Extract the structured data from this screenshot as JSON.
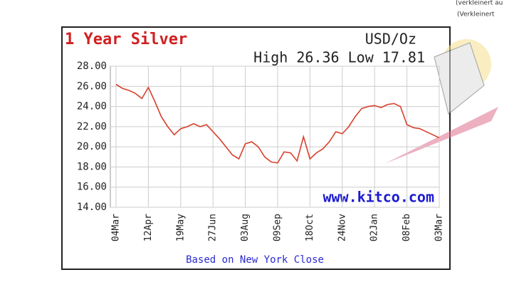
{
  "chart_data": {
    "type": "line",
    "title": "1 Year Silver",
    "subtitle": "USD/Oz",
    "annotation": "High 26.36 Low 17.81",
    "watermark": "www.kitco.com",
    "footer": "Based on New York Close",
    "categories": [
      "04Mar",
      null,
      null,
      null,
      null,
      "12Apr",
      null,
      null,
      null,
      null,
      "19May",
      null,
      null,
      null,
      null,
      "27Jun",
      null,
      null,
      null,
      null,
      "03Aug",
      null,
      null,
      null,
      null,
      "09Sep",
      null,
      null,
      null,
      null,
      "18Oct",
      null,
      null,
      null,
      null,
      "24Nov",
      null,
      null,
      null,
      null,
      "02Jan",
      null,
      null,
      null,
      null,
      "08Feb",
      null,
      null,
      null,
      null,
      "03Mar"
    ],
    "values": [
      26.2,
      25.8,
      25.6,
      25.3,
      24.8,
      25.9,
      24.5,
      23.0,
      22.0,
      21.2,
      21.8,
      22.0,
      22.3,
      22.0,
      22.2,
      21.5,
      20.8,
      20.0,
      19.2,
      18.8,
      20.3,
      20.5,
      20.0,
      19.0,
      18.5,
      18.4,
      19.5,
      19.4,
      18.6,
      21.0,
      18.8,
      19.4,
      19.8,
      20.5,
      21.5,
      21.3,
      22.0,
      23.0,
      23.8,
      24.0,
      24.1,
      23.9,
      24.2,
      24.3,
      24.0,
      22.2,
      21.9,
      21.8,
      21.5,
      21.2,
      20.9
    ],
    "color": "#d8402c",
    "ylim": [
      14,
      28
    ],
    "yticks": [
      {
        "value": 14,
        "label": "14.00"
      },
      {
        "value": 16,
        "label": "16.00"
      },
      {
        "value": 18,
        "label": "18.00"
      },
      {
        "value": 20,
        "label": "20.00"
      },
      {
        "value": 22,
        "label": "22.00"
      },
      {
        "value": 24,
        "label": "24.00"
      },
      {
        "value": 26,
        "label": "26.00"
      },
      {
        "value": 28,
        "label": "28.00"
      }
    ],
    "grid": true
  },
  "captions": [
    "(verkleinert au",
    "(Verkleinert"
  ]
}
